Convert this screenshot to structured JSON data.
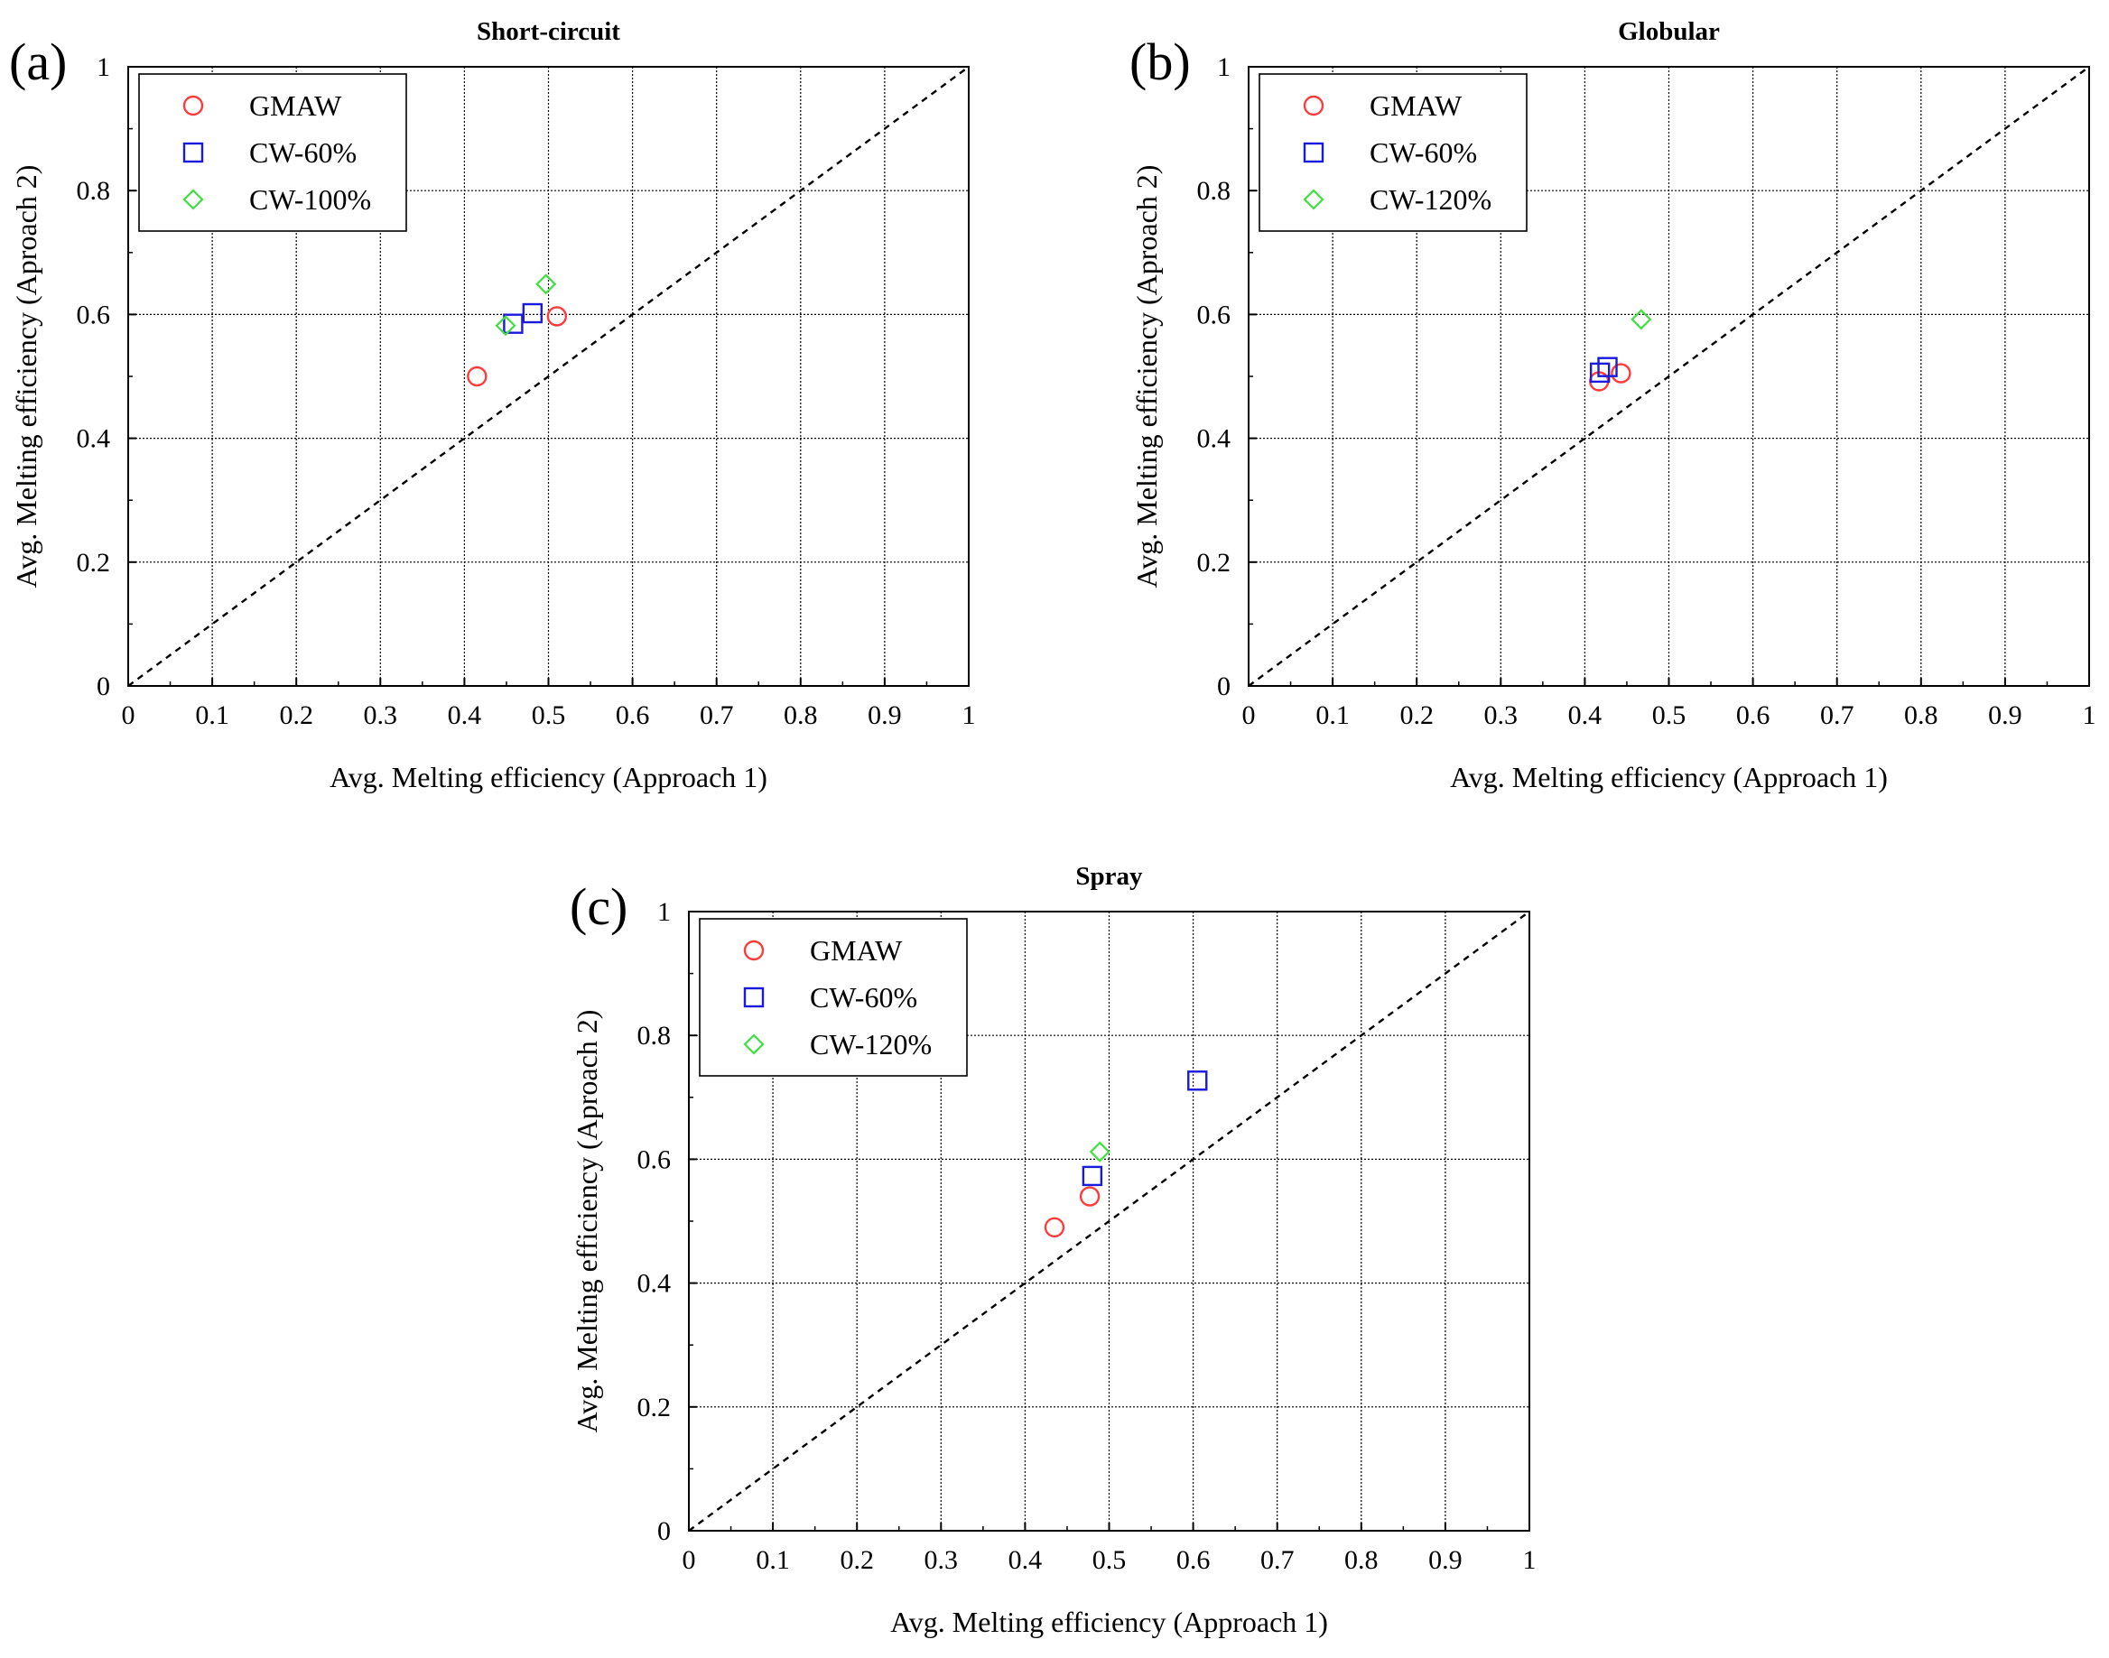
{
  "chart_data": [
    {
      "type": "scatter",
      "panel_label": "(a)",
      "title": "Short-circuit",
      "xlabel": "Avg. Melting efficiency (Approach 1)",
      "ylabel": "Avg. Melting efficiency (Aproach 2)",
      "xlim": [
        0,
        1
      ],
      "ylim": [
        0,
        1
      ],
      "xticks": [
        "0",
        "0.1",
        "0.2",
        "0.3",
        "0.4",
        "0.5",
        "0.6",
        "0.7",
        "0.8",
        "0.9",
        "1"
      ],
      "yticks": [
        "0",
        "0.2",
        "0.4",
        "0.6",
        "0.8",
        "1"
      ],
      "grid": true,
      "legend_position": "top-left",
      "reference_line": {
        "style": "dashed",
        "from": [
          0,
          0
        ],
        "to": [
          1,
          1
        ]
      },
      "series": [
        {
          "name": "GMAW",
          "marker": "circle",
          "color": "#ff3b3b",
          "points": [
            [
              0.415,
              0.5
            ],
            [
              0.51,
              0.597
            ]
          ]
        },
        {
          "name": "CW-60%",
          "marker": "square",
          "color": "#1a1adf",
          "points": [
            [
              0.458,
              0.585
            ],
            [
              0.481,
              0.602
            ]
          ]
        },
        {
          "name": "CW-100%",
          "marker": "diamond",
          "color": "#3fe03f",
          "points": [
            [
              0.449,
              0.582
            ],
            [
              0.497,
              0.649
            ]
          ]
        }
      ]
    },
    {
      "type": "scatter",
      "panel_label": "(b)",
      "title": "Globular",
      "xlabel": "Avg. Melting efficiency (Approach 1)",
      "ylabel": "Avg. Melting efficiency (Aproach 2)",
      "xlim": [
        0,
        1
      ],
      "ylim": [
        0,
        1
      ],
      "xticks": [
        "0",
        "0.1",
        "0.2",
        "0.3",
        "0.4",
        "0.5",
        "0.6",
        "0.7",
        "0.8",
        "0.9",
        "1"
      ],
      "yticks": [
        "0",
        "0.2",
        "0.4",
        "0.6",
        "0.8",
        "1"
      ],
      "grid": true,
      "legend_position": "top-left",
      "reference_line": {
        "style": "dashed",
        "from": [
          0,
          0
        ],
        "to": [
          1,
          1
        ]
      },
      "series": [
        {
          "name": "GMAW",
          "marker": "circle",
          "color": "#ff3b3b",
          "points": [
            [
              0.417,
              0.492
            ],
            [
              0.443,
              0.505
            ]
          ]
        },
        {
          "name": "CW-60%",
          "marker": "square",
          "color": "#1a1adf",
          "points": [
            [
              0.418,
              0.506
            ],
            [
              0.427,
              0.515
            ]
          ]
        },
        {
          "name": "CW-120%",
          "marker": "diamond",
          "color": "#3fe03f",
          "points": [
            [
              0.467,
              0.592
            ]
          ]
        }
      ]
    },
    {
      "type": "scatter",
      "panel_label": "(c)",
      "title": "Spray",
      "xlabel": "Avg. Melting efficiency (Approach 1)",
      "ylabel": "Avg. Melting efficiency (Aproach 2)",
      "xlim": [
        0,
        1
      ],
      "ylim": [
        0,
        1
      ],
      "xticks": [
        "0",
        "0.1",
        "0.2",
        "0.3",
        "0.4",
        "0.5",
        "0.6",
        "0.7",
        "0.8",
        "0.9",
        "1"
      ],
      "yticks": [
        "0",
        "0.2",
        "0.4",
        "0.6",
        "0.8",
        "1"
      ],
      "grid": true,
      "legend_position": "top-left",
      "reference_line": {
        "style": "dashed",
        "from": [
          0,
          0
        ],
        "to": [
          1,
          1
        ]
      },
      "series": [
        {
          "name": "GMAW",
          "marker": "circle",
          "color": "#ff3b3b",
          "points": [
            [
              0.435,
              0.49
            ],
            [
              0.477,
              0.54
            ]
          ]
        },
        {
          "name": "CW-60%",
          "marker": "square",
          "color": "#1a1adf",
          "points": [
            [
              0.48,
              0.573
            ],
            [
              0.605,
              0.727
            ]
          ]
        },
        {
          "name": "CW-120%",
          "marker": "diamond",
          "color": "#3fe03f",
          "points": [
            [
              0.489,
              0.612
            ]
          ]
        }
      ]
    }
  ]
}
